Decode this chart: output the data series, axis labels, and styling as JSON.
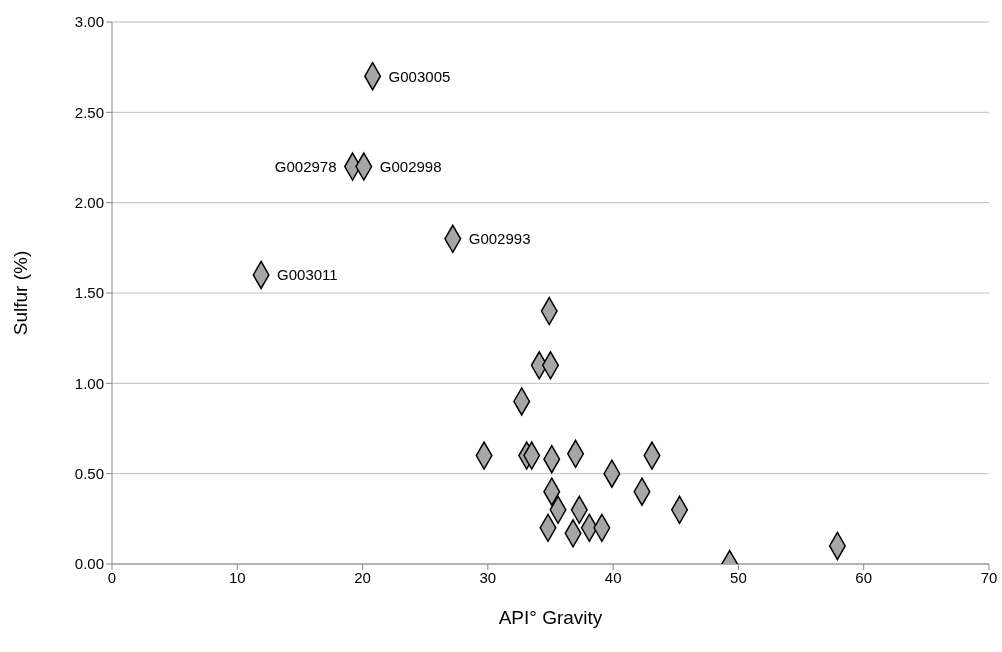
{
  "chart_data": {
    "type": "scatter",
    "xlabel": "API° Gravity",
    "ylabel": "Sulfur (%)",
    "x": [
      34.9,
      34.1,
      35.0,
      32.7,
      29.7,
      33.1,
      33.5,
      35.1,
      37.0,
      43.1,
      39.9,
      42.3,
      35.1,
      45.3,
      35.6,
      37.3,
      34.8,
      36.8,
      38.1,
      39.1,
      49.3,
      57.9,
      20.8,
      19.2,
      20.1,
      27.2,
      11.9
    ],
    "series": [
      {
        "color": "#a6a6a6",
        "values": [
          1.4,
          1.1,
          1.1,
          0.9,
          0.6,
          0.6,
          0.6,
          0.58,
          0.61,
          0.6,
          0.5,
          0.4,
          0.4,
          0.3,
          0.3,
          0.3,
          0.2,
          0.17,
          0.2,
          0.2,
          0.0,
          0.1,
          2.7,
          2.2,
          2.2,
          1.8,
          1.6
        ]
      }
    ],
    "xlim": [
      0,
      70
    ],
    "xticks": [
      0,
      10,
      20,
      30,
      40,
      50,
      60,
      70
    ],
    "ylim": [
      0,
      3
    ],
    "yticks": [
      {
        "value": 0,
        "label": "0.00"
      },
      {
        "value": 0.5,
        "label": "0.50"
      },
      {
        "value": 1,
        "label": "1.00"
      },
      {
        "value": 1.5,
        "label": "1.50"
      },
      {
        "value": 2,
        "label": "2.00"
      },
      {
        "value": 2.5,
        "label": "2.50"
      },
      {
        "value": 3,
        "label": "3.00"
      }
    ],
    "grid": "y",
    "marker": "diamond",
    "legend": false,
    "annotations": [
      {
        "text": "G003005",
        "x": 20.8,
        "y": 2.7
      },
      {
        "text": "G002978",
        "x": 19.2,
        "y": 2.2
      },
      {
        "text": "G002998",
        "x": 20.1,
        "y": 2.2
      },
      {
        "text": "G002993",
        "x": 27.2,
        "y": 1.8
      },
      {
        "text": "G003011",
        "x": 11.9,
        "y": 1.6
      }
    ]
  }
}
